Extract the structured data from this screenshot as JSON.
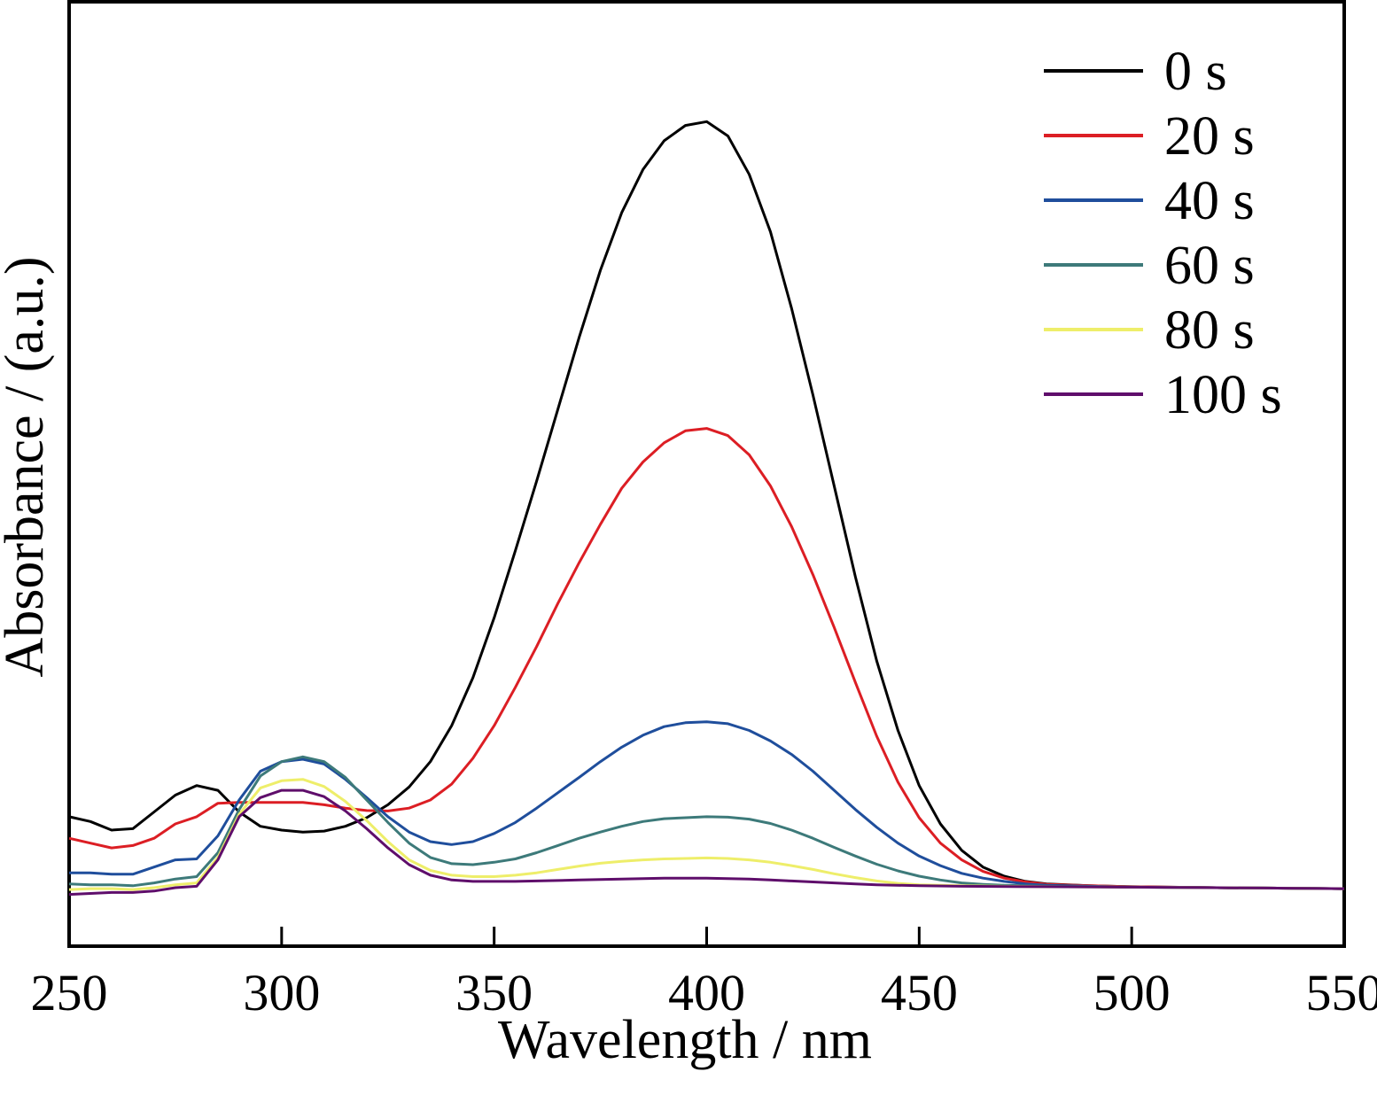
{
  "chart_data": {
    "type": "line",
    "title": "",
    "xlabel": "Wavelength / nm",
    "ylabel": "Absorbance / (a.u.)",
    "xlim": [
      250,
      550
    ],
    "ylim": [
      -0.12,
      1.85
    ],
    "xticks": [
      250,
      300,
      350,
      400,
      450,
      500,
      550
    ],
    "yticks_shown": false,
    "grid": false,
    "legend": {
      "position": "top-right"
    },
    "series": [
      {
        "name": "0 s",
        "color": "#000000",
        "points": [
          [
            250,
            0.15
          ],
          [
            255,
            0.14
          ],
          [
            260,
            0.122
          ],
          [
            265,
            0.125
          ],
          [
            270,
            0.16
          ],
          [
            275,
            0.195
          ],
          [
            280,
            0.215
          ],
          [
            285,
            0.205
          ],
          [
            290,
            0.16
          ],
          [
            295,
            0.13
          ],
          [
            300,
            0.122
          ],
          [
            305,
            0.118
          ],
          [
            310,
            0.12
          ],
          [
            315,
            0.13
          ],
          [
            320,
            0.148
          ],
          [
            325,
            0.175
          ],
          [
            330,
            0.212
          ],
          [
            335,
            0.265
          ],
          [
            340,
            0.34
          ],
          [
            345,
            0.44
          ],
          [
            350,
            0.565
          ],
          [
            355,
            0.705
          ],
          [
            360,
            0.85
          ],
          [
            365,
            1.0
          ],
          [
            370,
            1.15
          ],
          [
            375,
            1.29
          ],
          [
            380,
            1.41
          ],
          [
            385,
            1.5
          ],
          [
            390,
            1.56
          ],
          [
            395,
            1.592
          ],
          [
            400,
            1.6
          ],
          [
            405,
            1.57
          ],
          [
            410,
            1.49
          ],
          [
            415,
            1.37
          ],
          [
            420,
            1.21
          ],
          [
            425,
            1.03
          ],
          [
            430,
            0.84
          ],
          [
            435,
            0.65
          ],
          [
            440,
            0.475
          ],
          [
            445,
            0.33
          ],
          [
            450,
            0.215
          ],
          [
            455,
            0.135
          ],
          [
            460,
            0.08
          ],
          [
            465,
            0.045
          ],
          [
            470,
            0.026
          ],
          [
            475,
            0.015
          ],
          [
            480,
            0.01
          ],
          [
            490,
            0.006
          ],
          [
            500,
            0.004
          ],
          [
            520,
            0.002
          ],
          [
            550,
            0.0
          ]
        ]
      },
      {
        "name": "20 s",
        "color": "#dc1e24",
        "points": [
          [
            250,
            0.105
          ],
          [
            255,
            0.095
          ],
          [
            260,
            0.085
          ],
          [
            265,
            0.09
          ],
          [
            270,
            0.105
          ],
          [
            275,
            0.135
          ],
          [
            280,
            0.15
          ],
          [
            285,
            0.178
          ],
          [
            290,
            0.18
          ],
          [
            295,
            0.18
          ],
          [
            300,
            0.18
          ],
          [
            305,
            0.18
          ],
          [
            310,
            0.175
          ],
          [
            315,
            0.168
          ],
          [
            320,
            0.163
          ],
          [
            325,
            0.162
          ],
          [
            330,
            0.168
          ],
          [
            335,
            0.185
          ],
          [
            340,
            0.218
          ],
          [
            345,
            0.272
          ],
          [
            350,
            0.34
          ],
          [
            355,
            0.42
          ],
          [
            360,
            0.505
          ],
          [
            365,
            0.595
          ],
          [
            370,
            0.68
          ],
          [
            375,
            0.76
          ],
          [
            380,
            0.835
          ],
          [
            385,
            0.89
          ],
          [
            390,
            0.93
          ],
          [
            395,
            0.955
          ],
          [
            400,
            0.96
          ],
          [
            405,
            0.945
          ],
          [
            410,
            0.905
          ],
          [
            415,
            0.84
          ],
          [
            420,
            0.755
          ],
          [
            425,
            0.655
          ],
          [
            430,
            0.545
          ],
          [
            435,
            0.43
          ],
          [
            440,
            0.318
          ],
          [
            445,
            0.222
          ],
          [
            450,
            0.148
          ],
          [
            455,
            0.095
          ],
          [
            460,
            0.06
          ],
          [
            465,
            0.036
          ],
          [
            470,
            0.022
          ],
          [
            475,
            0.014
          ],
          [
            480,
            0.009
          ],
          [
            490,
            0.006
          ],
          [
            500,
            0.004
          ],
          [
            520,
            0.002
          ],
          [
            550,
            0.0
          ]
        ]
      },
      {
        "name": "40 s",
        "color": "#1f4e9c",
        "points": [
          [
            250,
            0.033
          ],
          [
            255,
            0.033
          ],
          [
            260,
            0.03
          ],
          [
            265,
            0.03
          ],
          [
            270,
            0.045
          ],
          [
            275,
            0.06
          ],
          [
            280,
            0.062
          ],
          [
            285,
            0.11
          ],
          [
            290,
            0.185
          ],
          [
            295,
            0.245
          ],
          [
            300,
            0.265
          ],
          [
            305,
            0.27
          ],
          [
            310,
            0.26
          ],
          [
            315,
            0.228
          ],
          [
            320,
            0.19
          ],
          [
            325,
            0.15
          ],
          [
            330,
            0.118
          ],
          [
            335,
            0.098
          ],
          [
            340,
            0.092
          ],
          [
            345,
            0.098
          ],
          [
            350,
            0.115
          ],
          [
            355,
            0.138
          ],
          [
            360,
            0.168
          ],
          [
            365,
            0.2
          ],
          [
            370,
            0.232
          ],
          [
            375,
            0.265
          ],
          [
            380,
            0.295
          ],
          [
            385,
            0.32
          ],
          [
            390,
            0.338
          ],
          [
            395,
            0.346
          ],
          [
            400,
            0.348
          ],
          [
            405,
            0.344
          ],
          [
            410,
            0.33
          ],
          [
            415,
            0.308
          ],
          [
            420,
            0.28
          ],
          [
            425,
            0.245
          ],
          [
            430,
            0.205
          ],
          [
            435,
            0.165
          ],
          [
            440,
            0.128
          ],
          [
            445,
            0.095
          ],
          [
            450,
            0.068
          ],
          [
            455,
            0.048
          ],
          [
            460,
            0.032
          ],
          [
            465,
            0.022
          ],
          [
            470,
            0.015
          ],
          [
            475,
            0.01
          ],
          [
            480,
            0.007
          ],
          [
            490,
            0.005
          ],
          [
            500,
            0.003
          ],
          [
            520,
            0.002
          ],
          [
            550,
            0.0
          ]
        ]
      },
      {
        "name": "60 s",
        "color": "#3d7a7a",
        "points": [
          [
            250,
            0.01
          ],
          [
            255,
            0.008
          ],
          [
            260,
            0.008
          ],
          [
            265,
            0.006
          ],
          [
            270,
            0.012
          ],
          [
            275,
            0.02
          ],
          [
            280,
            0.025
          ],
          [
            285,
            0.075
          ],
          [
            290,
            0.165
          ],
          [
            295,
            0.235
          ],
          [
            300,
            0.265
          ],
          [
            305,
            0.275
          ],
          [
            310,
            0.265
          ],
          [
            315,
            0.232
          ],
          [
            320,
            0.185
          ],
          [
            325,
            0.138
          ],
          [
            330,
            0.095
          ],
          [
            335,
            0.065
          ],
          [
            340,
            0.052
          ],
          [
            345,
            0.05
          ],
          [
            350,
            0.055
          ],
          [
            355,
            0.062
          ],
          [
            360,
            0.075
          ],
          [
            365,
            0.09
          ],
          [
            370,
            0.105
          ],
          [
            375,
            0.118
          ],
          [
            380,
            0.13
          ],
          [
            385,
            0.14
          ],
          [
            390,
            0.146
          ],
          [
            395,
            0.148
          ],
          [
            400,
            0.15
          ],
          [
            405,
            0.149
          ],
          [
            410,
            0.145
          ],
          [
            415,
            0.136
          ],
          [
            420,
            0.122
          ],
          [
            425,
            0.105
          ],
          [
            430,
            0.086
          ],
          [
            435,
            0.068
          ],
          [
            440,
            0.051
          ],
          [
            445,
            0.037
          ],
          [
            450,
            0.026
          ],
          [
            455,
            0.018
          ],
          [
            460,
            0.012
          ],
          [
            465,
            0.009
          ],
          [
            470,
            0.007
          ],
          [
            480,
            0.005
          ],
          [
            500,
            0.003
          ],
          [
            520,
            0.002
          ],
          [
            550,
            0.0
          ]
        ]
      },
      {
        "name": "80 s",
        "color": "#eeee6a",
        "points": [
          [
            250,
            -0.002
          ],
          [
            255,
            0.0
          ],
          [
            260,
            0.0
          ],
          [
            265,
            -0.002
          ],
          [
            270,
            0.002
          ],
          [
            275,
            0.008
          ],
          [
            280,
            0.012
          ],
          [
            285,
            0.065
          ],
          [
            290,
            0.155
          ],
          [
            295,
            0.21
          ],
          [
            300,
            0.225
          ],
          [
            305,
            0.228
          ],
          [
            310,
            0.213
          ],
          [
            315,
            0.182
          ],
          [
            320,
            0.142
          ],
          [
            325,
            0.098
          ],
          [
            330,
            0.06
          ],
          [
            335,
            0.038
          ],
          [
            340,
            0.028
          ],
          [
            345,
            0.025
          ],
          [
            350,
            0.025
          ],
          [
            355,
            0.028
          ],
          [
            360,
            0.033
          ],
          [
            365,
            0.04
          ],
          [
            370,
            0.047
          ],
          [
            375,
            0.053
          ],
          [
            380,
            0.057
          ],
          [
            385,
            0.06
          ],
          [
            390,
            0.062
          ],
          [
            395,
            0.063
          ],
          [
            400,
            0.064
          ],
          [
            405,
            0.063
          ],
          [
            410,
            0.06
          ],
          [
            415,
            0.055
          ],
          [
            420,
            0.048
          ],
          [
            425,
            0.04
          ],
          [
            430,
            0.031
          ],
          [
            435,
            0.023
          ],
          [
            440,
            0.016
          ],
          [
            445,
            0.011
          ],
          [
            450,
            0.008
          ],
          [
            460,
            0.006
          ],
          [
            470,
            0.005
          ],
          [
            480,
            0.004
          ],
          [
            500,
            0.003
          ],
          [
            520,
            0.002
          ],
          [
            550,
            0.0
          ]
        ]
      },
      {
        "name": "100 s",
        "color": "#5f0e6b",
        "points": [
          [
            250,
            -0.012
          ],
          [
            255,
            -0.01
          ],
          [
            260,
            -0.008
          ],
          [
            265,
            -0.008
          ],
          [
            270,
            -0.005
          ],
          [
            275,
            0.002
          ],
          [
            280,
            0.005
          ],
          [
            285,
            0.06
          ],
          [
            290,
            0.15
          ],
          [
            295,
            0.19
          ],
          [
            300,
            0.205
          ],
          [
            305,
            0.205
          ],
          [
            310,
            0.192
          ],
          [
            315,
            0.162
          ],
          [
            320,
            0.125
          ],
          [
            325,
            0.085
          ],
          [
            330,
            0.05
          ],
          [
            335,
            0.028
          ],
          [
            340,
            0.018
          ],
          [
            345,
            0.015
          ],
          [
            350,
            0.015
          ],
          [
            355,
            0.015
          ],
          [
            360,
            0.016
          ],
          [
            365,
            0.017
          ],
          [
            370,
            0.018
          ],
          [
            375,
            0.019
          ],
          [
            380,
            0.02
          ],
          [
            385,
            0.021
          ],
          [
            390,
            0.022
          ],
          [
            395,
            0.022
          ],
          [
            400,
            0.022
          ],
          [
            405,
            0.021
          ],
          [
            410,
            0.02
          ],
          [
            415,
            0.018
          ],
          [
            420,
            0.016
          ],
          [
            425,
            0.014
          ],
          [
            430,
            0.012
          ],
          [
            435,
            0.01
          ],
          [
            440,
            0.008
          ],
          [
            450,
            0.006
          ],
          [
            460,
            0.005
          ],
          [
            480,
            0.004
          ],
          [
            500,
            0.003
          ],
          [
            520,
            0.002
          ],
          [
            550,
            0.0
          ]
        ]
      }
    ]
  }
}
